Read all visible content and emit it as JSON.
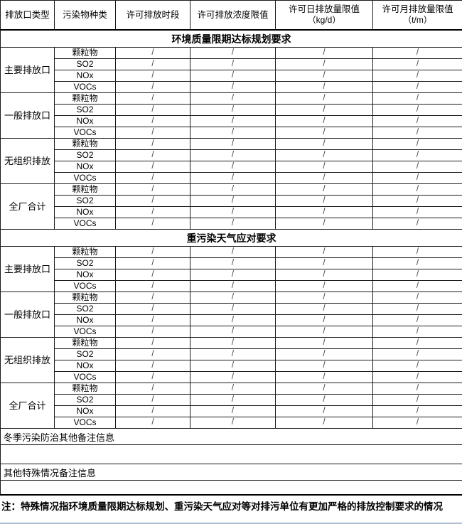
{
  "page": {
    "background": "#ffffff",
    "bottom_accent_color": "#aebdd2"
  },
  "table": {
    "headers": [
      {
        "label": "排放口类型"
      },
      {
        "label": "污染物种类"
      },
      {
        "label": "许可排放时段"
      },
      {
        "label": "许可排放浓度限值"
      },
      {
        "label": "许可日排放量限值",
        "sub": "（kg/d）"
      },
      {
        "label": "许可月排放量限值",
        "sub": "（t/m）"
      }
    ]
  },
  "sections": [
    {
      "title": "环境质量限期达标规划要求",
      "groups": [
        {
          "label": "主要排放口",
          "rows": [
            {
              "pollutant": "颗粒物",
              "values": [
                "/",
                "/",
                "/",
                "/"
              ]
            },
            {
              "pollutant": "SO2",
              "values": [
                "/",
                "/",
                "/",
                "/"
              ]
            },
            {
              "pollutant": "NOx",
              "values": [
                "/",
                "/",
                "/",
                "/"
              ]
            },
            {
              "pollutant": "VOCs",
              "values": [
                "/",
                "/",
                "/",
                "/"
              ]
            }
          ]
        },
        {
          "label": "一般排放口",
          "rows": [
            {
              "pollutant": "颗粒物",
              "values": [
                "/",
                "/",
                "/",
                "/"
              ]
            },
            {
              "pollutant": "SO2",
              "values": [
                "/",
                "/",
                "/",
                "/"
              ]
            },
            {
              "pollutant": "NOx",
              "values": [
                "/",
                "/",
                "/",
                "/"
              ]
            },
            {
              "pollutant": "VOCs",
              "values": [
                "/",
                "/",
                "/",
                "/"
              ]
            }
          ]
        },
        {
          "label": "无组织排放",
          "rows": [
            {
              "pollutant": "颗粒物",
              "values": [
                "/",
                "/",
                "/",
                "/"
              ]
            },
            {
              "pollutant": "SO2",
              "values": [
                "/",
                "/",
                "/",
                "/"
              ]
            },
            {
              "pollutant": "NOx",
              "values": [
                "/",
                "/",
                "/",
                "/"
              ]
            },
            {
              "pollutant": "VOCs",
              "values": [
                "/",
                "/",
                "/",
                "/"
              ]
            }
          ]
        },
        {
          "label": "全厂合计",
          "rows": [
            {
              "pollutant": "颗粒物",
              "values": [
                "/",
                "/",
                "/",
                "/"
              ]
            },
            {
              "pollutant": "SO2",
              "values": [
                "/",
                "/",
                "/",
                "/"
              ]
            },
            {
              "pollutant": "NOx",
              "values": [
                "/",
                "/",
                "/",
                "/"
              ]
            },
            {
              "pollutant": "VOCs",
              "values": [
                "/",
                "/",
                "/",
                "/"
              ]
            }
          ]
        }
      ]
    },
    {
      "title": "重污染天气应对要求",
      "groups": [
        {
          "label": "主要排放口",
          "rows": [
            {
              "pollutant": "颗粒物",
              "values": [
                "/",
                "/",
                "/",
                "/"
              ]
            },
            {
              "pollutant": "SO2",
              "values": [
                "/",
                "/",
                "/",
                "/"
              ]
            },
            {
              "pollutant": "NOx",
              "values": [
                "/",
                "/",
                "/",
                "/"
              ]
            },
            {
              "pollutant": "VOCs",
              "values": [
                "/",
                "/",
                "/",
                "/"
              ]
            }
          ]
        },
        {
          "label": "一般排放口",
          "rows": [
            {
              "pollutant": "颗粒物",
              "values": [
                "/",
                "/",
                "/",
                "/"
              ]
            },
            {
              "pollutant": "SO2",
              "values": [
                "/",
                "/",
                "/",
                "/"
              ]
            },
            {
              "pollutant": "NOx",
              "values": [
                "/",
                "/",
                "/",
                "/"
              ]
            },
            {
              "pollutant": "VOCs",
              "values": [
                "/",
                "/",
                "/",
                "/"
              ]
            }
          ]
        },
        {
          "label": "无组织排放",
          "rows": [
            {
              "pollutant": "颗粒物",
              "values": [
                "/",
                "/",
                "/",
                "/"
              ]
            },
            {
              "pollutant": "SO2",
              "values": [
                "/",
                "/",
                "/",
                "/"
              ]
            },
            {
              "pollutant": "NOx",
              "values": [
                "/",
                "/",
                "/",
                "/"
              ]
            },
            {
              "pollutant": "VOCs",
              "values": [
                "/",
                "/",
                "/",
                "/"
              ]
            }
          ]
        },
        {
          "label": "全厂合计",
          "rows": [
            {
              "pollutant": "颗粒物",
              "values": [
                "/",
                "/",
                "/",
                "/"
              ]
            },
            {
              "pollutant": "SO2",
              "values": [
                "/",
                "/",
                "/",
                "/"
              ]
            },
            {
              "pollutant": "NOx",
              "values": [
                "/",
                "/",
                "/",
                "/"
              ]
            },
            {
              "pollutant": "VOCs",
              "values": [
                "/",
                "/",
                "/",
                "/"
              ]
            }
          ]
        }
      ]
    }
  ],
  "footer": {
    "winter_remarks_label": "冬季污染防治其他备注信息",
    "winter_remarks_value": "",
    "other_remarks_label": "其他特殊情况备注信息",
    "other_remarks_value": "",
    "note": "注：特殊情况指环境质量限期达标规划、重污染天气应对等对排污单位有更加严格的排放控制要求的情况"
  }
}
